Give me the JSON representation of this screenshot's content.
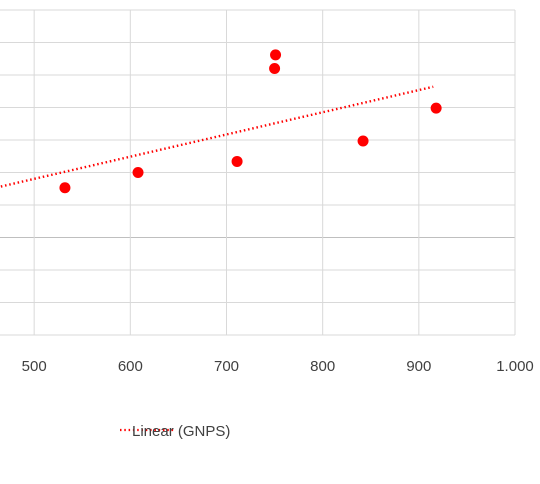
{
  "chart_data": {
    "type": "scatter",
    "x_tick_labels": [
      "500",
      "600",
      "700",
      "800",
      "900",
      "1.000"
    ],
    "xlim": [
      400,
      1000
    ],
    "ylim": [
      0,
      10
    ],
    "grid": true,
    "series": [
      {
        "points": [
          {
            "x": 532,
            "y": 4.53
          },
          {
            "x": 608,
            "y": 5.0
          },
          {
            "x": 711,
            "y": 5.34
          },
          {
            "x": 750,
            "y": 8.2
          },
          {
            "x": 751,
            "y": 8.62
          },
          {
            "x": 842,
            "y": 5.97
          },
          {
            "x": 918,
            "y": 6.98
          }
        ],
        "color": "#ff0000",
        "marker": "circle"
      }
    ],
    "trendline": {
      "type": "linear",
      "name": "Linear (GNPS)",
      "color": "#ff0000",
      "style": "dotted",
      "x_end": 915
    },
    "legend": {
      "position": "bottom",
      "entries": [
        "Linear (GNPS)"
      ]
    }
  }
}
